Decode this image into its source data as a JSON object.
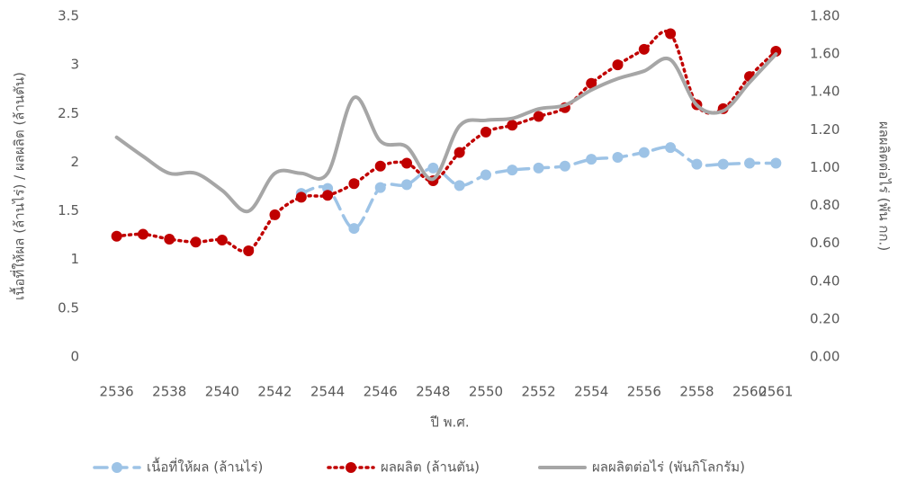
{
  "chart_data": {
    "type": "line",
    "x_label": "ปี พ.ศ.",
    "y_label": "เนื้อที่ให้ผล (ล้านไร่) / ผลผลิต (ล้านตัน)",
    "y2_label": "ผลผลิตต่อไร่ (พัน กก.)",
    "categories": [
      "2536",
      null,
      "2538",
      null,
      "2540",
      null,
      "2542",
      null,
      "2544",
      null,
      "2546",
      null,
      "2548",
      null,
      "2550",
      null,
      "2552",
      null,
      "2554",
      null,
      "2556",
      null,
      "2558",
      null,
      "2560",
      "2561"
    ],
    "series": [
      {
        "name": "เนื้อที่ให้ผล (ล้านไร่)",
        "color": "#9dc3e6",
        "style": "dashed",
        "marker": true,
        "values": [
          null,
          null,
          null,
          null,
          null,
          null,
          null,
          1.68,
          1.73,
          1.32,
          1.74,
          1.77,
          1.94,
          1.76,
          1.87,
          1.92,
          1.94,
          1.96,
          2.03,
          2.05,
          2.1,
          2.15,
          1.98,
          1.98,
          1.99,
          1.99
        ]
      },
      {
        "name": "ผลผลิต (ล้านตัน)",
        "color": "#c00000",
        "style": "dotted",
        "marker": true,
        "values": [
          1.24,
          1.26,
          1.21,
          1.18,
          1.2,
          1.09,
          1.46,
          1.64,
          1.66,
          1.78,
          1.96,
          1.99,
          1.81,
          2.1,
          2.31,
          2.38,
          2.47,
          2.56,
          2.81,
          3.0,
          3.16,
          3.32,
          2.59,
          2.55,
          2.88,
          3.14
        ]
      },
      {
        "name": "ผลผลิตต่อไร่ (พันกิโลกรัม)",
        "color": "#a6a6a6",
        "style": "solid",
        "marker": false,
        "axis": "y2",
        "values": [
          1.16,
          1.06,
          0.97,
          0.97,
          0.88,
          0.77,
          0.97,
          0.97,
          0.97,
          1.37,
          1.14,
          1.11,
          0.94,
          1.22,
          1.25,
          1.26,
          1.31,
          1.33,
          1.41,
          1.47,
          1.51,
          1.57,
          1.33,
          1.3,
          1.45,
          1.6
        ]
      }
    ],
    "ylim": [
      0,
      3.5
    ],
    "yticks": [
      0,
      0.5,
      1,
      1.5,
      2,
      2.5,
      3,
      3.5
    ],
    "y2lim": [
      0,
      1.8
    ],
    "y2ticks": [
      {
        "value": 0,
        "label": "0.00"
      },
      {
        "value": 0.2,
        "label": "0.20"
      },
      {
        "value": 0.4,
        "label": "0.40"
      },
      {
        "value": 0.6,
        "label": "0.60"
      },
      {
        "value": 0.8,
        "label": "0.80"
      },
      {
        "value": 1.0,
        "label": "1.00"
      },
      {
        "value": 1.2,
        "label": "1.20"
      },
      {
        "value": 1.4,
        "label": "1.40"
      },
      {
        "value": 1.6,
        "label": "1.60"
      },
      {
        "value": 1.8,
        "label": "1.80"
      }
    ],
    "grid": false,
    "legend": "bottom"
  }
}
